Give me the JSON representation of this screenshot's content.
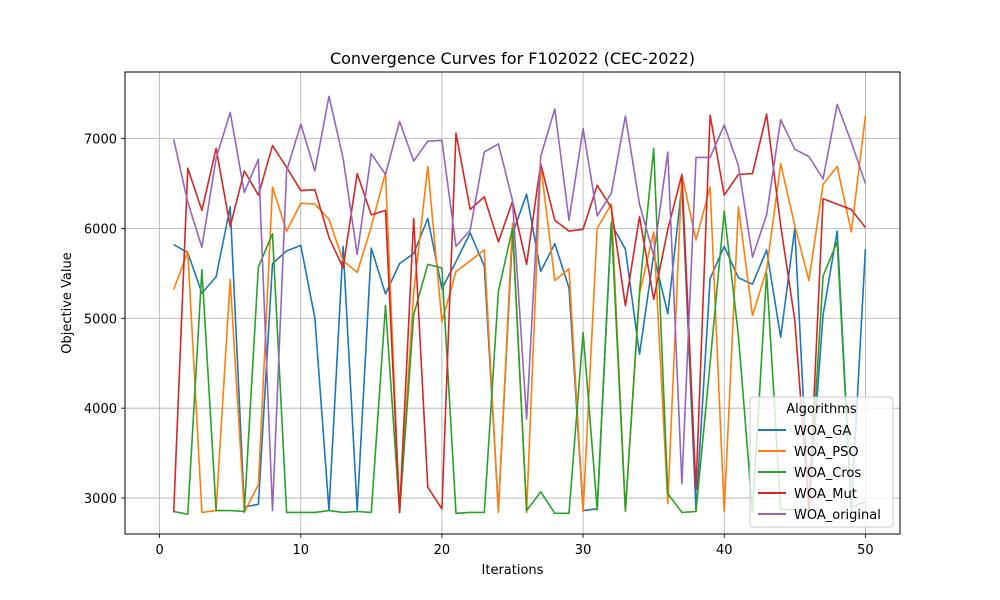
{
  "chart_data": {
    "type": "line",
    "title": "Convergence Curves for F102022 (CEC-2022)",
    "xlabel": "Iterations",
    "ylabel": "Objective Value",
    "xlim": [
      -2.45,
      52.45
    ],
    "ylim": [
      2600,
      7740
    ],
    "xticks": [
      0,
      10,
      20,
      30,
      40,
      50
    ],
    "yticks": [
      3000,
      4000,
      5000,
      6000,
      7000
    ],
    "grid": true,
    "legend": {
      "title": "Algorithms",
      "placement": "lower-right"
    },
    "x": [
      1,
      2,
      3,
      4,
      5,
      6,
      7,
      8,
      9,
      10,
      11,
      12,
      13,
      14,
      15,
      16,
      17,
      18,
      19,
      20,
      21,
      22,
      23,
      24,
      25,
      26,
      27,
      28,
      29,
      30,
      31,
      32,
      33,
      34,
      35,
      36,
      37,
      38,
      39,
      40,
      41,
      42,
      43,
      44,
      45,
      46,
      47,
      48,
      49,
      50
    ],
    "series": [
      {
        "name": "WOA_GA",
        "color": "#1f77b4",
        "values": [
          5820,
          5730,
          5280,
          5460,
          6240,
          2900,
          2930,
          5610,
          5750,
          5810,
          5000,
          2860,
          5800,
          2860,
          5780,
          5270,
          5610,
          5720,
          6110,
          5330,
          5630,
          5950,
          5580,
          2870,
          5940,
          6380,
          5520,
          5830,
          5340,
          2860,
          2880,
          6050,
          5770,
          4600,
          5710,
          5050,
          6480,
          2860,
          5440,
          5800,
          5450,
          5380,
          5760,
          4790,
          6000,
          2870,
          5040,
          5970,
          2870,
          5770
        ]
      },
      {
        "name": "WOA_PSO",
        "color": "#ff7f0e",
        "values": [
          5320,
          5740,
          2840,
          2860,
          5430,
          2840,
          3150,
          6460,
          5970,
          6280,
          6270,
          6100,
          5640,
          5510,
          6020,
          6620,
          2840,
          5290,
          6690,
          4960,
          5520,
          5640,
          5760,
          2840,
          6060,
          2840,
          6710,
          5420,
          5550,
          2850,
          6000,
          6270,
          2850,
          5270,
          5960,
          2940,
          6600,
          5870,
          6460,
          2850,
          6240,
          5030,
          5540,
          6720,
          6030,
          5420,
          6490,
          6690,
          5960,
          7250
        ]
      },
      {
        "name": "WOA_Cros",
        "color": "#2ca02c",
        "values": [
          2850,
          2820,
          5540,
          2860,
          2860,
          2850,
          5570,
          5940,
          2840,
          2840,
          2840,
          2860,
          2840,
          2850,
          2840,
          5140,
          2840,
          5040,
          5600,
          5560,
          2830,
          2840,
          2840,
          5300,
          6000,
          2860,
          3070,
          2830,
          2830,
          4840,
          2870,
          6070,
          2860,
          5300,
          6890,
          3050,
          2840,
          2850,
          4500,
          6190,
          4810,
          2840,
          5500,
          2870,
          2870,
          2880,
          5470,
          5850,
          2900,
          2960
        ]
      },
      {
        "name": "WOA_Mut",
        "color": "#d62728",
        "values": [
          2840,
          6670,
          6200,
          6890,
          6020,
          6640,
          6370,
          6920,
          6680,
          6420,
          6430,
          5900,
          5560,
          6610,
          6150,
          6200,
          2840,
          6110,
          3120,
          2880,
          7060,
          6210,
          6350,
          5850,
          6300,
          5600,
          6720,
          6090,
          5970,
          5990,
          6480,
          6230,
          5140,
          6130,
          5210,
          5990,
          6600,
          3100,
          7260,
          6370,
          6600,
          6610,
          7270,
          6030,
          4980,
          2880,
          6330,
          6270,
          6210,
          6010
        ]
      },
      {
        "name": "WOA_original",
        "color": "#9467bd",
        "values": [
          6990,
          6290,
          5790,
          6780,
          7290,
          6400,
          6770,
          2860,
          6640,
          7160,
          6640,
          7470,
          6780,
          5710,
          6830,
          6600,
          7190,
          6750,
          6970,
          6980,
          5800,
          5980,
          6850,
          6940,
          6310,
          3880,
          6800,
          7330,
          6090,
          7110,
          6140,
          6390,
          7250,
          6270,
          5700,
          6850,
          3160,
          6790,
          6790,
          7150,
          6700,
          5680,
          6150,
          7210,
          6880,
          6800,
          6550,
          7380,
          6960,
          6500
        ]
      }
    ]
  }
}
